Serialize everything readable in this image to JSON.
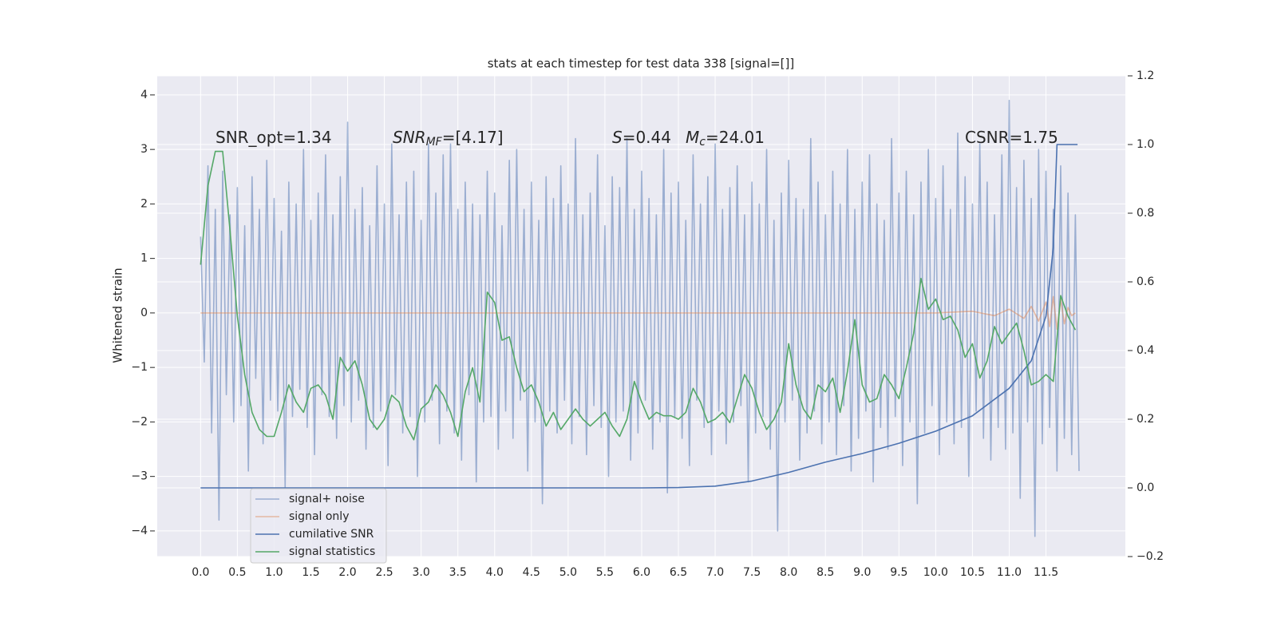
{
  "chart_data": {
    "type": "line",
    "title": "stats at each timestep for test data 338 [signal=[]]",
    "ylabel": "Whitened strain",
    "xlim": [
      -0.59,
      12.58
    ],
    "ylim": [
      -4.47,
      4.35
    ],
    "y2lim": [
      -0.2,
      1.2
    ],
    "xticks": [
      {
        "value": 0,
        "label": "0.0"
      },
      0.5,
      {
        "value": 1,
        "label": "1.0"
      },
      1.5,
      {
        "value": 2,
        "label": "2.0"
      },
      2.5,
      {
        "value": 3,
        "label": "3.0"
      },
      3.5,
      {
        "value": 4,
        "label": "4.0"
      },
      4.5,
      {
        "value": 5,
        "label": "5.0"
      },
      5.5,
      {
        "value": 6,
        "label": "6.0"
      },
      6.5,
      {
        "value": 7,
        "label": "7.0"
      },
      7.5,
      {
        "value": 8,
        "label": "8.0"
      },
      8.5,
      {
        "value": 9,
        "label": "9.0"
      },
      9.5,
      {
        "value": 10,
        "label": "10.0"
      },
      10.5,
      {
        "value": 11,
        "label": "11.0"
      },
      11.5
    ],
    "yticks": [
      {
        "value": -4,
        "label": "−4"
      },
      {
        "value": -3,
        "label": "−3"
      },
      {
        "value": -2,
        "label": "−2"
      },
      {
        "value": -1,
        "label": "−1"
      },
      0,
      1,
      2,
      3,
      4
    ],
    "y2ticks": [
      {
        "value": -0.2,
        "label": "−0.2"
      },
      {
        "value": 0,
        "label": "0.0"
      },
      0.2,
      0.4,
      0.6,
      0.8,
      {
        "value": 1,
        "label": "1.0"
      },
      1.2
    ],
    "grid": true,
    "legend_loc": "lower left",
    "annotations": [
      {
        "text": "SNR_opt=1.34"
      },
      {
        "base": "SNR",
        "sub": "MF",
        "rest": "=[4.17]"
      },
      {
        "base": "S",
        "rest": "=0.44"
      },
      {
        "base": "M",
        "sub": "c",
        "rest": "=24.01"
      },
      {
        "text": "CSNR=1.75"
      }
    ],
    "series": [
      {
        "name": "signal+ noise",
        "color": "#4c72b0",
        "alpha": 0.5,
        "x": [
          0,
          0.05,
          0.1,
          0.15,
          0.2,
          0.25,
          0.3,
          0.35,
          0.4,
          0.45,
          0.5,
          0.55,
          0.6,
          0.65,
          0.7,
          0.75,
          0.8,
          0.85,
          0.9,
          0.95,
          1,
          1.05,
          1.1,
          1.15,
          1.2,
          1.25,
          1.3,
          1.35,
          1.4,
          1.45,
          1.5,
          1.55,
          1.6,
          1.65,
          1.7,
          1.75,
          1.8,
          1.85,
          1.9,
          1.95,
          2,
          2.05,
          2.1,
          2.15,
          2.2,
          2.25,
          2.3,
          2.35,
          2.4,
          2.45,
          2.5,
          2.55,
          2.6,
          2.65,
          2.7,
          2.75,
          2.8,
          2.85,
          2.9,
          2.95,
          3,
          3.05,
          3.1,
          3.15,
          3.2,
          3.25,
          3.3,
          3.35,
          3.4,
          3.45,
          3.5,
          3.55,
          3.6,
          3.65,
          3.7,
          3.75,
          3.8,
          3.85,
          3.9,
          3.95,
          4,
          4.05,
          4.1,
          4.15,
          4.2,
          4.25,
          4.3,
          4.35,
          4.4,
          4.45,
          4.5,
          4.55,
          4.6,
          4.65,
          4.7,
          4.75,
          4.8,
          4.85,
          4.9,
          4.95,
          5,
          5.05,
          5.1,
          5.15,
          5.2,
          5.25,
          5.3,
          5.35,
          5.4,
          5.45,
          5.5,
          5.55,
          5.6,
          5.65,
          5.7,
          5.75,
          5.8,
          5.85,
          5.9,
          5.95,
          6,
          6.05,
          6.1,
          6.15,
          6.2,
          6.25,
          6.3,
          6.35,
          6.4,
          6.45,
          6.5,
          6.55,
          6.6,
          6.65,
          6.7,
          6.75,
          6.8,
          6.85,
          6.9,
          6.95,
          7,
          7.05,
          7.1,
          7.15,
          7.2,
          7.25,
          7.3,
          7.35,
          7.4,
          7.45,
          7.5,
          7.55,
          7.6,
          7.65,
          7.7,
          7.75,
          7.8,
          7.85,
          7.9,
          7.95,
          8,
          8.05,
          8.1,
          8.15,
          8.2,
          8.25,
          8.3,
          8.35,
          8.4,
          8.45,
          8.5,
          8.55,
          8.6,
          8.65,
          8.7,
          8.75,
          8.8,
          8.85,
          8.9,
          8.95,
          9,
          9.05,
          9.1,
          9.15,
          9.2,
          9.25,
          9.3,
          9.35,
          9.4,
          9.45,
          9.5,
          9.55,
          9.6,
          9.65,
          9.7,
          9.75,
          9.8,
          9.85,
          9.9,
          9.95,
          10,
          10.05,
          10.1,
          10.15,
          10.2,
          10.25,
          10.3,
          10.35,
          10.4,
          10.45,
          10.5,
          10.55,
          10.6,
          10.65,
          10.7,
          10.75,
          10.8,
          10.85,
          10.9,
          10.95,
          11,
          11.05,
          11.1,
          11.15,
          11.2,
          11.25,
          11.3,
          11.35,
          11.4,
          11.45,
          11.5,
          11.55,
          11.6,
          11.65,
          11.7,
          11.75,
          11.8,
          11.85,
          11.9,
          11.95
        ],
        "values": [
          1.4,
          -0.9,
          2.7,
          -2.2,
          1.9,
          -3.8,
          2.6,
          -1.5,
          1.8,
          -2.0,
          2.3,
          -1.7,
          1.6,
          -2.9,
          2.5,
          -1.2,
          1.9,
          -2.4,
          2.8,
          -1.6,
          2.1,
          -1.8,
          1.5,
          -3.2,
          2.4,
          -1.9,
          2.0,
          -1.4,
          3.0,
          -2.1,
          1.7,
          -2.6,
          2.2,
          -1.5,
          2.9,
          -1.9,
          1.8,
          -2.3,
          2.5,
          -1.7,
          3.5,
          -2.0,
          1.9,
          -1.6,
          2.3,
          -2.5,
          1.6,
          -2.1,
          2.7,
          -1.8,
          2.0,
          -2.8,
          3.1,
          -1.5,
          1.8,
          -2.2,
          2.4,
          -1.9,
          2.6,
          -3.0,
          1.7,
          -2.0,
          3.1,
          -1.6,
          2.2,
          -2.4,
          2.9,
          -1.8,
          3.1,
          -2.2,
          1.9,
          -2.7,
          2.4,
          -1.5,
          2.0,
          -3.1,
          1.8,
          -2.0,
          2.6,
          -1.9,
          2.2,
          -2.5,
          1.6,
          -1.8,
          2.8,
          -2.3,
          3.0,
          -1.6,
          1.9,
          -2.9,
          2.4,
          -2.0,
          1.7,
          -3.5,
          2.5,
          -1.8,
          2.1,
          -2.2,
          2.7,
          -1.6,
          2.0,
          -2.4,
          3.2,
          -1.9,
          1.8,
          -2.6,
          2.2,
          -1.7,
          2.9,
          -2.1,
          1.6,
          -3.0,
          2.5,
          -2.0,
          2.3,
          -1.8,
          3.2,
          -2.7,
          1.9,
          -2.2,
          2.6,
          -1.6,
          2.1,
          -2.5,
          1.8,
          -2.0,
          3.0,
          -3.3,
          2.2,
          -1.9,
          2.4,
          -2.3,
          1.7,
          -2.8,
          2.9,
          -1.6,
          2.0,
          -2.1,
          2.5,
          -2.6,
          3.1,
          -1.8,
          1.9,
          -2.4,
          2.3,
          -2.0,
          2.7,
          -1.7,
          1.8,
          -3.1,
          2.4,
          -2.2,
          2.0,
          -1.9,
          3.0,
          -2.5,
          1.7,
          -4.0,
          2.2,
          -2.0,
          2.8,
          -1.6,
          2.1,
          -2.7,
          1.9,
          -2.2,
          3.2,
          -1.8,
          2.4,
          -2.4,
          1.8,
          -2.0,
          2.6,
          -2.6,
          2.0,
          -1.7,
          3.0,
          -2.9,
          1.9,
          -2.3,
          2.4,
          -1.8,
          2.9,
          -3.1,
          2.0,
          -2.1,
          1.7,
          -2.5,
          3.2,
          -1.9,
          2.2,
          -2.8,
          2.6,
          -2.0,
          1.8,
          -3.5,
          2.4,
          -2.2,
          3.0,
          -1.7,
          2.1,
          -2.6,
          2.7,
          -2.0,
          1.9,
          -2.4,
          3.3,
          -2.1,
          2.5,
          -3.0,
          2.0,
          -1.8,
          3.1,
          -2.3,
          2.4,
          -2.7,
          1.8,
          -2.1,
          2.9,
          -2.5,
          3.9,
          -2.2,
          2.3,
          -3.4,
          2.8,
          -2.0,
          2.1,
          -4.1,
          3.0,
          -2.4,
          2.6,
          -2.1,
          1.9,
          -2.9,
          2.7,
          -2.3,
          2.2,
          -2.6,
          1.8,
          -2.9
        ]
      },
      {
        "name": "signal only",
        "color": "#dd8452",
        "alpha": 0.5,
        "x": [
          0,
          1,
          2,
          3,
          4,
          5,
          6,
          7,
          8,
          9,
          10,
          10.5,
          10.8,
          11,
          11.2,
          11.3,
          11.4,
          11.5,
          11.55,
          11.6,
          11.65,
          11.7,
          11.75,
          11.8,
          11.85,
          11.9
        ],
        "values": [
          0,
          0,
          0,
          0,
          0,
          0,
          0,
          0,
          0,
          0,
          0,
          0.03,
          -0.05,
          0.07,
          -0.1,
          0.12,
          -0.15,
          0.2,
          -0.25,
          0.3,
          -0.3,
          0.25,
          -0.2,
          0.1,
          -0.05,
          0
        ]
      },
      {
        "name": "cumilative SNR",
        "color": "#4c72b0",
        "alpha": 1,
        "axis": "y2",
        "x": [
          0,
          6,
          6.5,
          7,
          7.5,
          8,
          8.5,
          9,
          9.5,
          10,
          10.5,
          11,
          11.3,
          11.5,
          11.6,
          11.65,
          11.7,
          11.93
        ],
        "values": [
          0,
          0,
          0.001,
          0.005,
          0.02,
          0.045,
          0.075,
          0.1,
          0.13,
          0.165,
          0.21,
          0.29,
          0.37,
          0.5,
          0.7,
          1,
          1,
          1
        ]
      },
      {
        "name": "signal statistics",
        "color": "#55a868",
        "alpha": 1,
        "axis": "y2",
        "x": [
          0,
          0.1,
          0.2,
          0.3,
          0.4,
          0.5,
          0.6,
          0.7,
          0.8,
          0.9,
          1,
          1.1,
          1.2,
          1.3,
          1.4,
          1.5,
          1.6,
          1.7,
          1.8,
          1.9,
          2,
          2.1,
          2.2,
          2.3,
          2.4,
          2.5,
          2.6,
          2.7,
          2.8,
          2.9,
          3,
          3.1,
          3.2,
          3.3,
          3.4,
          3.5,
          3.6,
          3.7,
          3.8,
          3.9,
          4,
          4.1,
          4.2,
          4.3,
          4.4,
          4.5,
          4.6,
          4.7,
          4.8,
          4.9,
          5,
          5.1,
          5.2,
          5.3,
          5.4,
          5.5,
          5.6,
          5.7,
          5.8,
          5.9,
          6,
          6.1,
          6.2,
          6.3,
          6.4,
          6.5,
          6.6,
          6.7,
          6.8,
          6.9,
          7,
          7.1,
          7.2,
          7.3,
          7.4,
          7.5,
          7.6,
          7.7,
          7.8,
          7.9,
          8,
          8.1,
          8.2,
          8.3,
          8.4,
          8.5,
          8.6,
          8.7,
          8.8,
          8.9,
          9,
          9.1,
          9.2,
          9.3,
          9.4,
          9.5,
          9.6,
          9.7,
          9.8,
          9.9,
          10,
          10.1,
          10.2,
          10.3,
          10.4,
          10.5,
          10.6,
          10.7,
          10.8,
          10.9,
          11,
          11.1,
          11.2,
          11.3,
          11.4,
          11.5,
          11.6,
          11.7,
          11.8,
          11.9
        ],
        "values": [
          0.65,
          0.88,
          0.98,
          0.98,
          0.75,
          0.5,
          0.33,
          0.22,
          0.17,
          0.15,
          0.15,
          0.22,
          0.3,
          0.25,
          0.22,
          0.29,
          0.3,
          0.27,
          0.2,
          0.38,
          0.34,
          0.37,
          0.3,
          0.2,
          0.17,
          0.2,
          0.27,
          0.25,
          0.18,
          0.14,
          0.23,
          0.25,
          0.3,
          0.27,
          0.22,
          0.15,
          0.28,
          0.35,
          0.25,
          0.57,
          0.54,
          0.43,
          0.44,
          0.35,
          0.28,
          0.3,
          0.25,
          0.18,
          0.22,
          0.17,
          0.2,
          0.23,
          0.2,
          0.18,
          0.2,
          0.22,
          0.18,
          0.15,
          0.2,
          0.31,
          0.25,
          0.2,
          0.22,
          0.21,
          0.21,
          0.2,
          0.22,
          0.29,
          0.25,
          0.19,
          0.2,
          0.22,
          0.19,
          0.26,
          0.33,
          0.29,
          0.22,
          0.17,
          0.2,
          0.25,
          0.42,
          0.3,
          0.23,
          0.2,
          0.3,
          0.28,
          0.32,
          0.22,
          0.34,
          0.49,
          0.3,
          0.25,
          0.26,
          0.33,
          0.3,
          0.26,
          0.35,
          0.45,
          0.61,
          0.52,
          0.55,
          0.49,
          0.5,
          0.46,
          0.38,
          0.42,
          0.32,
          0.37,
          0.47,
          0.42,
          0.45,
          0.48,
          0.4,
          0.3,
          0.31,
          0.33,
          0.31,
          0.56,
          0.5,
          0.46
        ]
      }
    ]
  }
}
